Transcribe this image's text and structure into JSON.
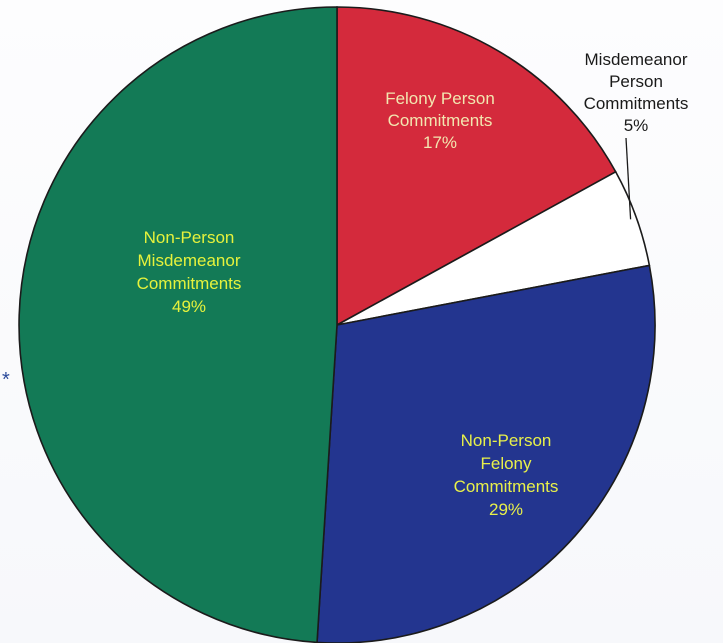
{
  "chart_data": {
    "type": "pie",
    "slices": [
      {
        "id": "felony-person",
        "label_lines": [
          "Felony Person",
          "Commitments",
          "17%"
        ],
        "value": 17,
        "color": "#d42a3c",
        "label_color": "#f2e6b0"
      },
      {
        "id": "misdemeanor-person",
        "label_lines": [
          "Misdemeanor",
          "Person",
          "Commitments",
          "5%"
        ],
        "value": 5,
        "color": "#ffffff",
        "label_color": "#1a1a1a"
      },
      {
        "id": "non-person-felony",
        "label_lines": [
          "Non-Person",
          "Felony",
          "Commitments",
          "29%"
        ],
        "value": 29,
        "color": "#23358f",
        "label_color": "#e8f04a"
      },
      {
        "id": "non-person-misdemeanor",
        "label_lines": [
          "Non-Person",
          "Misdemeanor",
          "Commitments",
          "49%"
        ],
        "value": 49,
        "color": "#137a56",
        "label_color": "#e6f23c"
      }
    ],
    "start_angle_deg": -90,
    "direction": "clockwise",
    "legend": "none"
  },
  "asterisk": "*",
  "colors": {
    "outline": "#1b1b1b",
    "asterisk": "#2b4a9a"
  }
}
